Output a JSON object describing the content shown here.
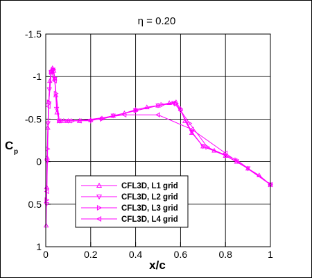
{
  "chart_data": {
    "type": "line",
    "title": "η = 0.20",
    "xlabel": "x/c",
    "ylabel_main": "C",
    "ylabel_sub": "p",
    "xlim": [
      0,
      1
    ],
    "ylim": [
      -1.5,
      1
    ],
    "y_inverted": true,
    "x_ticks": [
      "0",
      "0.2",
      "0.4",
      "0.6",
      "0.8",
      "1"
    ],
    "x_tick_values": [
      0,
      0.2,
      0.4,
      0.6,
      0.8,
      1
    ],
    "y_ticks": [
      "-1.5",
      "-1",
      "-0.5",
      "0",
      "0.5",
      "1"
    ],
    "y_tick_values": [
      -1.5,
      -1,
      -0.5,
      0,
      0.5,
      1
    ],
    "grid": true,
    "legend_position": "bottom-center",
    "series_color": "#ff00ff",
    "series": [
      {
        "name": "CFL3D, L1 grid",
        "marker": "triangle-up",
        "x": [
          0.002,
          0.004,
          0.006,
          0.009,
          0.013,
          0.018,
          0.024,
          0.03,
          0.036,
          0.04,
          0.045,
          0.05,
          0.06,
          0.08,
          0.1,
          0.15,
          0.2,
          0.25,
          0.3,
          0.35,
          0.4,
          0.45,
          0.5,
          0.55,
          0.58,
          0.6,
          0.62,
          0.65,
          0.7,
          0.75,
          0.8,
          0.85,
          0.9,
          0.95,
          1.0
        ],
        "y": [
          0.75,
          0.3,
          -0.05,
          -0.4,
          -0.7,
          -0.95,
          -1.06,
          -1.1,
          -1.07,
          -0.98,
          -0.78,
          -0.58,
          -0.48,
          -0.48,
          -0.48,
          -0.48,
          -0.49,
          -0.51,
          -0.54,
          -0.57,
          -0.61,
          -0.64,
          -0.66,
          -0.69,
          -0.7,
          -0.62,
          -0.48,
          -0.34,
          -0.18,
          -0.13,
          -0.07,
          0.0,
          0.08,
          0.16,
          0.27
        ]
      },
      {
        "name": "CFL3D, L2 grid",
        "marker": "triangle-down",
        "x": [
          0.003,
          0.006,
          0.01,
          0.016,
          0.024,
          0.032,
          0.04,
          0.048,
          0.06,
          0.1,
          0.2,
          0.3,
          0.4,
          0.5,
          0.57,
          0.6,
          0.65,
          0.7,
          0.8,
          0.9,
          1.0
        ],
        "y": [
          0.5,
          0.0,
          -0.45,
          -0.85,
          -1.05,
          -1.08,
          -0.97,
          -0.62,
          -0.48,
          -0.48,
          -0.48,
          -0.54,
          -0.6,
          -0.66,
          -0.69,
          -0.6,
          -0.35,
          -0.18,
          -0.07,
          0.08,
          0.27
        ]
      },
      {
        "name": "CFL3D, L3 grid",
        "marker": "triangle-right",
        "x": [
          0.004,
          0.008,
          0.014,
          0.024,
          0.035,
          0.045,
          0.06,
          0.12,
          0.25,
          0.4,
          0.52,
          0.58,
          0.64,
          0.72,
          0.85,
          1.0
        ],
        "y": [
          0.45,
          -0.15,
          -0.7,
          -1.05,
          -1.08,
          -0.8,
          -0.48,
          -0.48,
          -0.5,
          -0.6,
          -0.67,
          -0.68,
          -0.45,
          -0.17,
          -0.02,
          0.27
        ]
      },
      {
        "name": "CFL3D, L4 grid",
        "marker": "triangle-left",
        "x": [
          0.005,
          0.012,
          0.025,
          0.04,
          0.06,
          0.15,
          0.35,
          0.5,
          0.65,
          0.8,
          1.0
        ],
        "y": [
          0.35,
          -0.65,
          -1.06,
          -0.95,
          -0.48,
          -0.48,
          -0.55,
          -0.55,
          -0.38,
          -0.1,
          0.27
        ]
      }
    ]
  }
}
